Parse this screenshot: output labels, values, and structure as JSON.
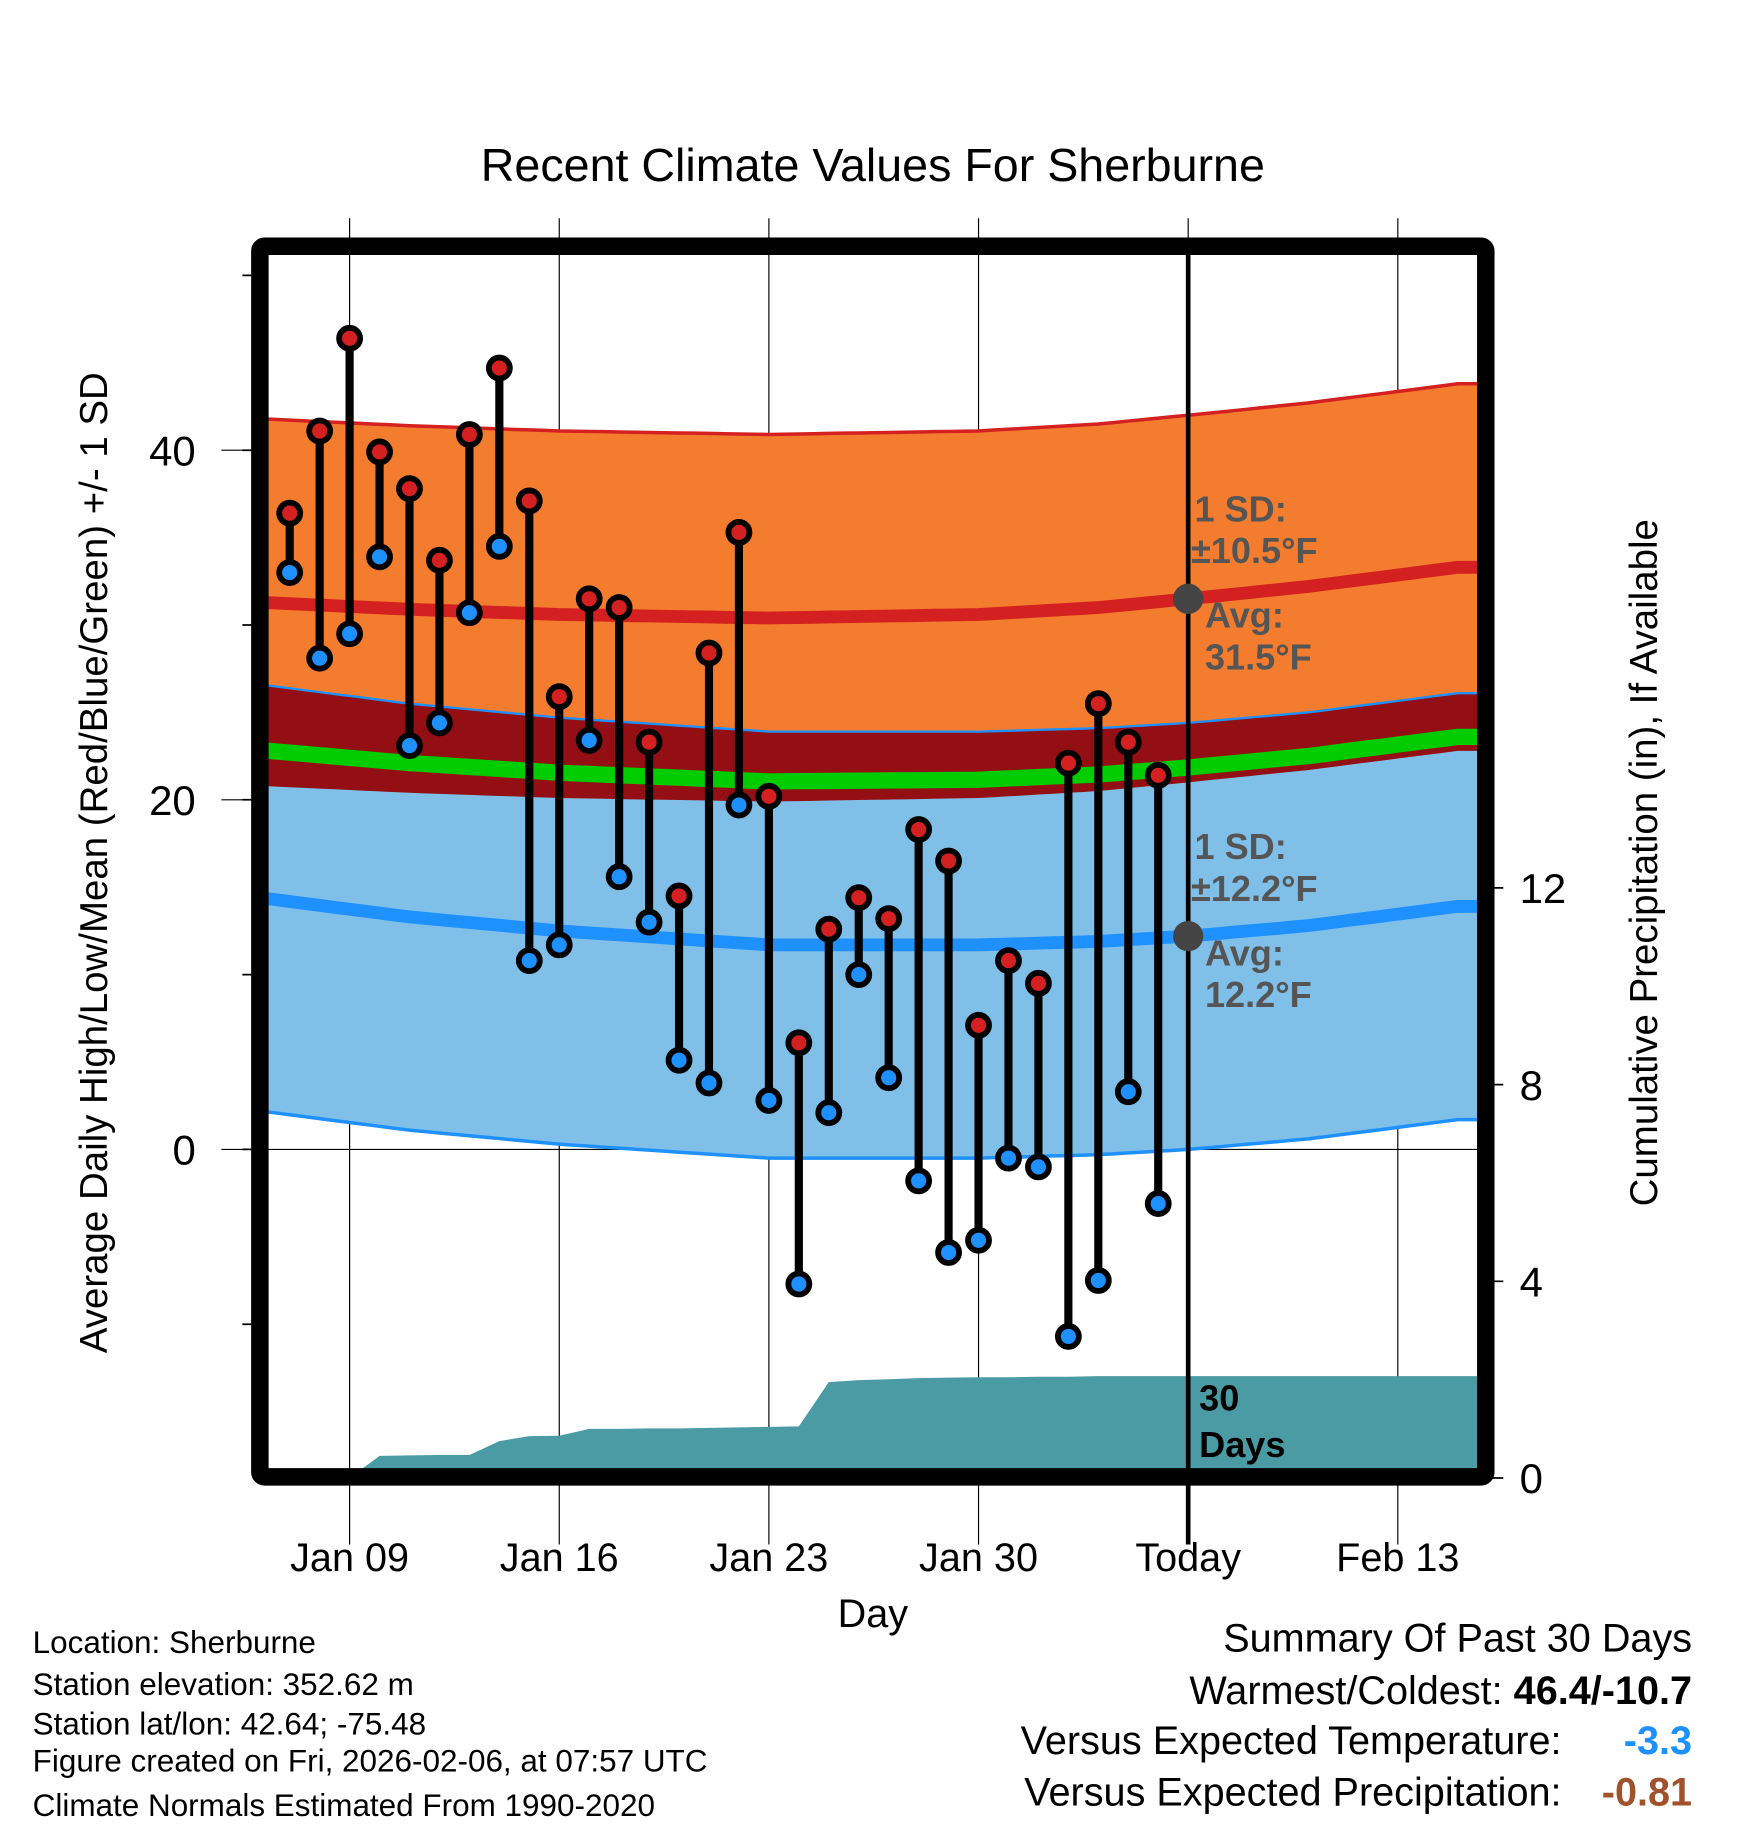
{
  "chart_data": {
    "type": "line",
    "title": "Recent Climate Values For Sherburne",
    "xlabel": "Day",
    "ylabel": "Average Daily High/Low/Mean (Red/Blue/Green) +/- 1 SD",
    "y2label": "Cumulative Precipitation (in), If Available",
    "ylim": [
      -18.3,
      51.2
    ],
    "y2lim": [
      0,
      24.9
    ],
    "yticks": [
      "40",
      "20",
      "0"
    ],
    "y2ticks": [
      "12",
      "8",
      "4",
      "0"
    ],
    "xticks": [
      "Jan 09",
      "Jan 16",
      "Jan 23",
      "Jan 30",
      "Today",
      "Feb 13"
    ],
    "grid": true,
    "dates": [
      "Jan 07",
      "Jan 08",
      "Jan 09",
      "Jan 10",
      "Jan 11",
      "Jan 12",
      "Jan 13",
      "Jan 14",
      "Jan 15",
      "Jan 16",
      "Jan 17",
      "Jan 18",
      "Jan 19",
      "Jan 20",
      "Jan 21",
      "Jan 22",
      "Jan 23",
      "Jan 24",
      "Jan 25",
      "Jan 26",
      "Jan 27",
      "Jan 28",
      "Jan 29",
      "Jan 30",
      "Jan 31",
      "Feb 01",
      "Feb 02",
      "Feb 03",
      "Feb 04",
      "Feb 05"
    ],
    "series": [
      {
        "name": "Daily High",
        "color": "#d42020",
        "values": [
          36.4,
          41.1,
          46.4,
          39.9,
          37.8,
          33.7,
          40.9,
          44.7,
          37.1,
          25.9,
          31.5,
          31.0,
          23.3,
          14.5,
          28.4,
          35.3,
          20.2,
          6.1,
          12.6,
          14.4,
          13.2,
          18.3,
          16.5,
          7.1,
          10.8,
          9.5,
          22.1,
          25.5,
          23.3,
          21.4
        ]
      },
      {
        "name": "Daily Low",
        "color": "#1e90ff",
        "values": [
          33.0,
          28.1,
          29.5,
          33.9,
          23.1,
          24.4,
          30.7,
          34.5,
          10.8,
          11.7,
          23.4,
          15.6,
          13.0,
          5.1,
          3.8,
          19.7,
          2.8,
          -7.7,
          2.1,
          10.0,
          4.1,
          -1.8,
          -5.9,
          -5.2,
          -0.5,
          -1.0,
          -10.7,
          -7.5,
          3.3,
          -3.1
        ]
      },
      {
        "name": "Cumulative Precipitation",
        "color": "#4a9ba3",
        "values": [
          0,
          0,
          0,
          0.45,
          0.46,
          0.47,
          0.47,
          0.75,
          0.85,
          0.86,
          1.0,
          1.0,
          1.01,
          1.01,
          1.02,
          1.03,
          1.04,
          1.05,
          1.95,
          1.99,
          2.01,
          2.03,
          2.04,
          2.05,
          2.05,
          2.06,
          2.06,
          2.07,
          2.07,
          2.07
        ]
      }
    ],
    "normals": {
      "dates": [
        "Jan 06",
        "Jan 11",
        "Jan 16",
        "Jan 23",
        "Jan 30",
        "Feb 03",
        "Feb 06",
        "Feb 10",
        "Feb 15"
      ],
      "high_avg": [
        31.3,
        30.9,
        30.6,
        30.4,
        30.6,
        31.0,
        31.5,
        32.2,
        33.3
      ],
      "high_sd": 10.5,
      "low_avg": [
        14.4,
        13.3,
        12.5,
        11.7,
        11.7,
        11.9,
        12.2,
        12.8,
        13.9
      ],
      "low_sd": 12.2
    },
    "today": "Feb 06",
    "annotations": {
      "high_sd_label": "1 SD:",
      "high_sd_value": "±10.5°F",
      "high_avg_label": "Avg:",
      "high_avg_value": "31.5°F",
      "low_sd_label": "1 SD:",
      "low_sd_value": "±12.2°F",
      "low_avg_label": "Avg:",
      "low_avg_value": "12.2°F",
      "precip_period_1": "30",
      "precip_period_2": "Days"
    },
    "colors": {
      "high_band": "#f47c2f",
      "overlap_band": "#930f14",
      "mean_line": "#00cc00",
      "low_band": "#80c0e8",
      "high_line": "#d42020",
      "low_line": "#1e90ff",
      "precip": "#4a9ba3"
    }
  },
  "info": {
    "location": "Location: Sherburne",
    "elevation": "Station elevation: 352.62 m",
    "latlon": "Station lat/lon: 42.64; -75.48",
    "created": "Figure created on Fri, 2026-02-06, at 07:57 UTC",
    "normals": "Climate Normals Estimated From 1990-2020"
  },
  "summary": {
    "title": "Summary Of Past 30 Days",
    "warm_cold_label": "Warmest/Coldest: ",
    "warm_cold_value": "46.4/-10.7",
    "temp_label": "Versus Expected Temperature:",
    "temp_value": "-3.3",
    "temp_color": "#1e90ff",
    "precip_label": "Versus Expected Precipitation:",
    "precip_value": "-0.81",
    "precip_color": "#a0522d"
  }
}
